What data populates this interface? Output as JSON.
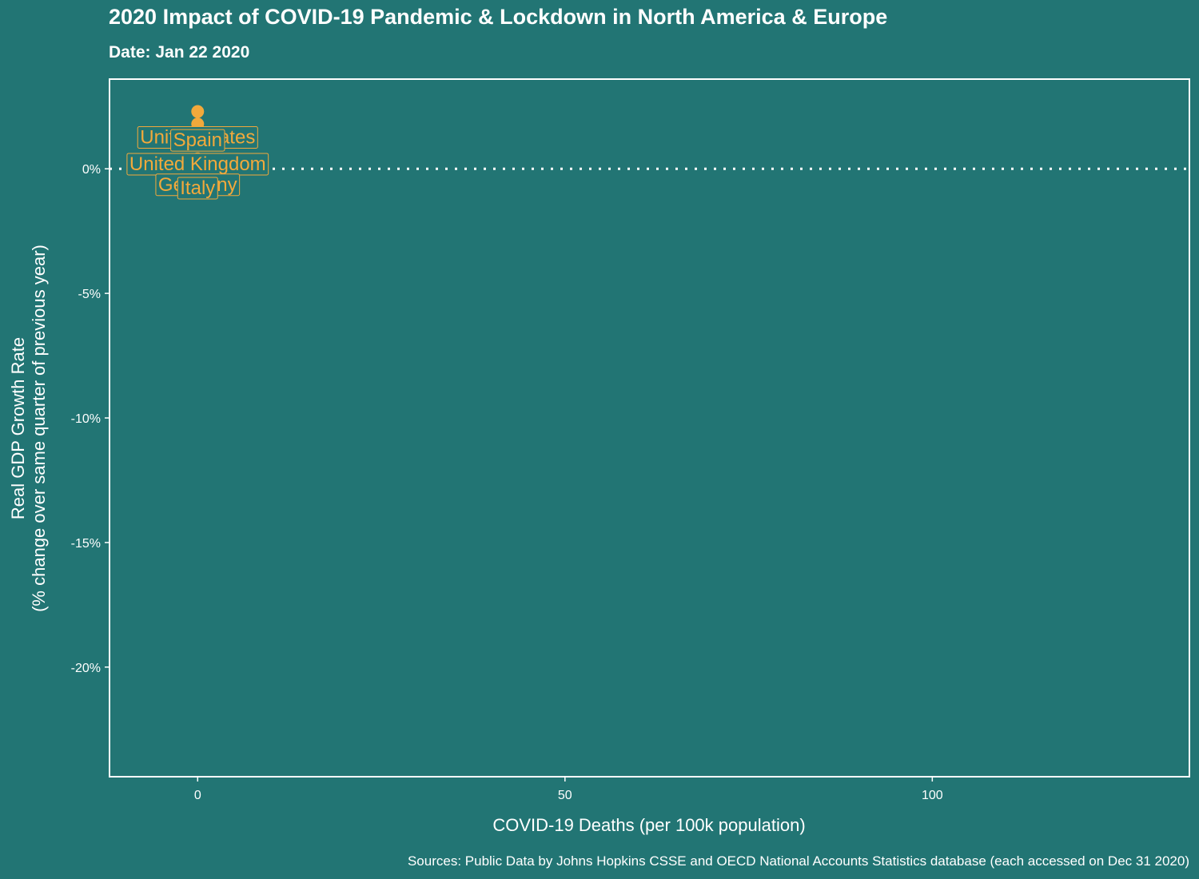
{
  "title": "2020 Impact of COVID-19 Pandemic & Lockdown in North America & Europe",
  "subtitle": "Date: Jan 22 2020",
  "caption": "Sources: Public Data by Johns Hopkins CSSE and OECD National Accounts Statistics database (each accessed on Dec 31 2020)",
  "colors": {
    "background": "#227574",
    "points": "#f2a93b",
    "axis": "#ffffff"
  },
  "chart_data": {
    "type": "scatter",
    "title": "2020 Impact of COVID-19 Pandemic & Lockdown in North America & Europe",
    "subtitle": "Date: Jan 22 2020",
    "xlabel": "COVID-19 Deaths (per 100k population)",
    "ylabel_lines": [
      "Real GDP Growth Rate",
      "(% change over same quarter of previous year)"
    ],
    "xlim": [
      -12,
      135
    ],
    "ylim": [
      -24.4,
      3.6
    ],
    "x_ticks": [
      0,
      50,
      100
    ],
    "x_tick_labels": [
      "0",
      "50",
      "100"
    ],
    "y_ticks": [
      0,
      -5,
      -10,
      -15,
      -20
    ],
    "y_tick_labels": [
      "0%",
      "-5%",
      "-10%",
      "-15%",
      "-20%"
    ],
    "reference_line": {
      "y": 0,
      "style": "dotted"
    },
    "grid": false,
    "legend": "none",
    "points": [
      {
        "country": "United States",
        "x": 0,
        "y": 2.3
      },
      {
        "country": "Spain",
        "x": 0,
        "y": 1.8
      },
      {
        "country": "United Kingdom",
        "x": 0,
        "y": 1.1
      },
      {
        "country": "Germany",
        "x": 0,
        "y": 0.4
      },
      {
        "country": "Italy",
        "x": 0,
        "y": 0.2
      }
    ]
  }
}
